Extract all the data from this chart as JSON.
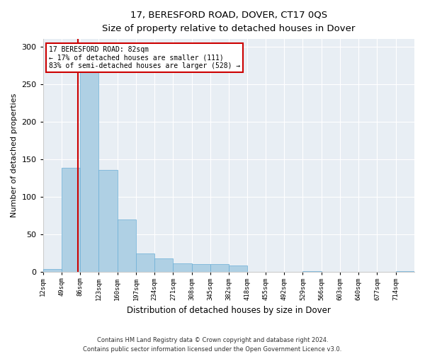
{
  "title_line1": "17, BERESFORD ROAD, DOVER, CT17 0QS",
  "title_line2": "Size of property relative to detached houses in Dover",
  "xlabel": "Distribution of detached houses by size in Dover",
  "ylabel": "Number of detached properties",
  "footer_line1": "Contains HM Land Registry data © Crown copyright and database right 2024.",
  "footer_line2": "Contains public sector information licensed under the Open Government Licence v3.0.",
  "annotation_line1": "17 BERESFORD ROAD: 82sqm",
  "annotation_line2": "← 17% of detached houses are smaller (111)",
  "annotation_line3": "83% of semi-detached houses are larger (528) →",
  "bar_color": "#afd0e4",
  "bar_edge_color": "#6aaed6",
  "vline_color": "#cc0000",
  "annotation_box_edge": "#cc0000",
  "background_color": "#e8eef4",
  "bins": [
    12,
    49,
    86,
    123,
    160,
    197,
    234,
    271,
    308,
    345,
    382,
    418,
    455,
    492,
    529,
    566,
    603,
    640,
    677,
    714,
    751
  ],
  "counts": [
    4,
    139,
    290,
    136,
    70,
    25,
    18,
    12,
    11,
    11,
    9,
    0,
    0,
    0,
    1,
    0,
    0,
    0,
    0,
    1
  ],
  "property_size": 82,
  "ylim": [
    0,
    310
  ],
  "yticks": [
    0,
    50,
    100,
    150,
    200,
    250,
    300
  ]
}
